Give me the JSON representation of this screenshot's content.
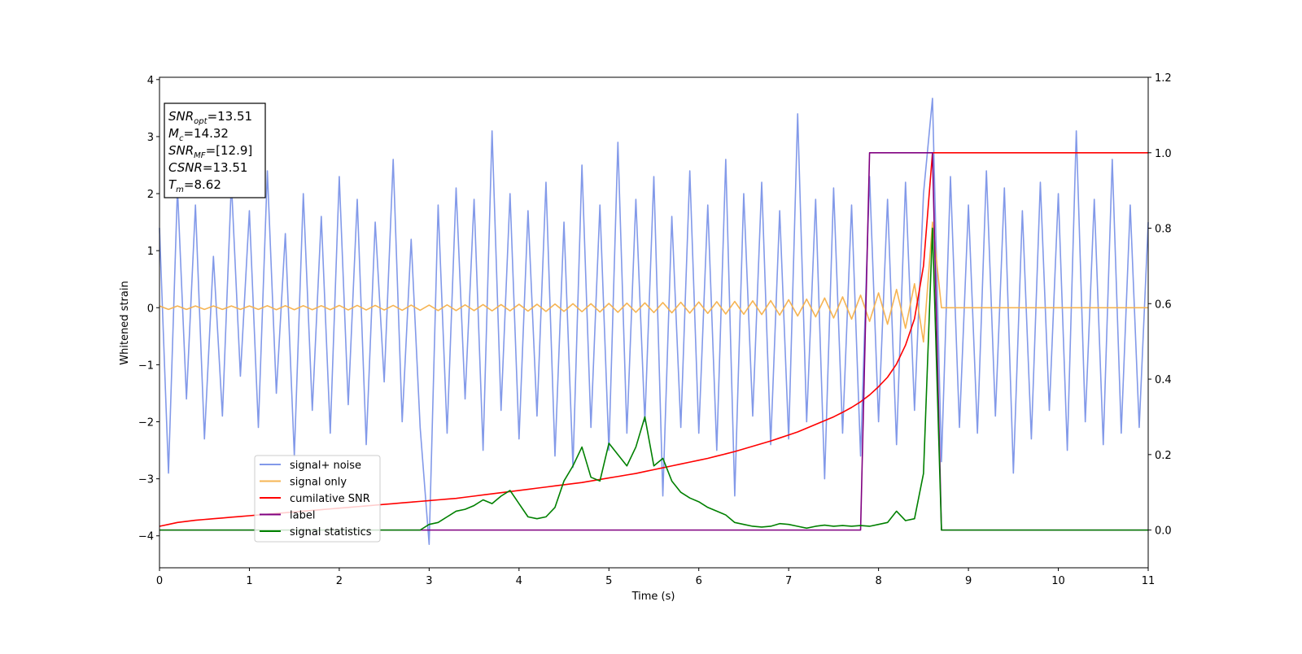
{
  "chart_data": {
    "type": "line",
    "xlabel": "Time (s)",
    "ylabel": "Whitened strain",
    "xlim": [
      0,
      11
    ],
    "xticks": [
      0,
      1,
      2,
      3,
      4,
      5,
      6,
      7,
      8,
      9,
      10,
      11
    ],
    "ylim": [
      -4.56,
      4.04
    ],
    "yticks": [
      {
        "value": -4,
        "label": "−4"
      },
      {
        "value": -3,
        "label": "−3"
      },
      {
        "value": -2,
        "label": "−2"
      },
      {
        "value": -1,
        "label": "−1"
      },
      0,
      1,
      2,
      3,
      4
    ],
    "y2lim": [
      -0.1,
      1.2
    ],
    "y2ticks": [
      {
        "value": 0,
        "label": "0.0"
      },
      0.2,
      0.4,
      0.6,
      0.8,
      {
        "value": 1,
        "label": "1.0"
      },
      1.2
    ],
    "legend_loc": "lower left",
    "annotations": [
      {
        "name": "SNR",
        "sub": "opt",
        "text": "=13.51"
      },
      {
        "name": "M",
        "sub": "c",
        "text": "=14.32"
      },
      {
        "name": "SNR",
        "sub": "MF",
        "text": "=[12.9]"
      },
      {
        "name": "CSNR",
        "text": "=13.51"
      },
      {
        "name": "T",
        "sub": "m",
        "text": "=8.62"
      }
    ],
    "x": [
      0,
      0.1,
      0.2,
      0.3,
      0.4,
      0.5,
      0.6,
      0.7,
      0.8,
      0.9,
      1,
      1.1,
      1.2,
      1.3,
      1.4,
      1.5,
      1.6,
      1.7,
      1.8,
      1.9,
      2,
      2.1,
      2.2,
      2.3,
      2.4,
      2.5,
      2.6,
      2.7,
      2.8,
      2.9,
      3,
      3.1,
      3.2,
      3.3,
      3.4,
      3.5,
      3.6,
      3.7,
      3.8,
      3.9,
      4,
      4.1,
      4.2,
      4.3,
      4.4,
      4.5,
      4.6,
      4.7,
      4.8,
      4.9,
      5,
      5.1,
      5.2,
      5.3,
      5.4,
      5.5,
      5.6,
      5.7,
      5.8,
      5.9,
      6,
      6.1,
      6.2,
      6.3,
      6.4,
      6.5,
      6.6,
      6.7,
      6.8,
      6.9,
      7,
      7.1,
      7.2,
      7.3,
      7.4,
      7.5,
      7.6,
      7.7,
      7.8,
      7.9,
      8,
      8.1,
      8.2,
      8.3,
      8.4,
      8.5,
      8.6,
      8.7,
      8.8,
      8.9,
      9,
      9.1,
      9.2,
      9.3,
      9.4,
      9.5,
      9.6,
      9.7,
      9.8,
      9.9,
      10,
      10.1,
      10.2,
      10.3,
      10.4,
      10.5,
      10.6,
      10.7,
      10.8,
      10.9,
      11
    ],
    "series": [
      {
        "name": "signal+ noise",
        "color": "#7b93e8",
        "values": [
          1.4,
          -2.9,
          2.1,
          -1.6,
          1.8,
          -2.3,
          0.9,
          -1.9,
          2.2,
          -1.2,
          1.7,
          -2.1,
          2.4,
          -1.5,
          1.3,
          -2.6,
          2.0,
          -1.8,
          1.6,
          -2.2,
          2.3,
          -1.7,
          1.9,
          -2.4,
          1.5,
          -1.3,
          2.6,
          -2.0,
          1.2,
          -2.1,
          -4.15,
          1.8,
          -2.2,
          2.1,
          -1.6,
          1.9,
          -2.5,
          3.1,
          -1.8,
          2.0,
          -2.3,
          1.7,
          -1.9,
          2.2,
          -2.6,
          1.5,
          -2.8,
          2.5,
          -2.1,
          1.8,
          -2.5,
          2.9,
          -2.2,
          1.9,
          -2.0,
          2.3,
          -3.3,
          1.6,
          -2.1,
          2.4,
          -2.2,
          1.8,
          -2.5,
          2.6,
          -3.3,
          2.0,
          -1.9,
          2.2,
          -2.4,
          1.7,
          -2.3,
          3.4,
          -2.0,
          1.9,
          -3.0,
          2.1,
          -2.2,
          1.8,
          -2.6,
          2.3,
          -2.0,
          1.9,
          -2.4,
          2.2,
          -1.8,
          2.0,
          3.67,
          -2.7,
          2.3,
          -2.1,
          1.8,
          -2.2,
          2.4,
          -1.9,
          2.1,
          -2.9,
          1.7,
          -2.3,
          2.2,
          -1.8,
          2.0,
          -2.5,
          3.1,
          -2.0,
          1.9,
          -2.4,
          2.6,
          -2.2,
          1.8,
          -2.1,
          1.5
        ]
      },
      {
        "name": "signal only",
        "color": "#f5b04a",
        "values": [
          0.03,
          -0.03,
          0.03,
          -0.03,
          0.03,
          -0.03,
          0.03,
          -0.03,
          0.03,
          -0.03,
          0.03,
          -0.03,
          0.035,
          -0.035,
          0.035,
          -0.035,
          0.035,
          -0.035,
          0.035,
          -0.035,
          0.04,
          -0.04,
          0.04,
          -0.04,
          0.04,
          -0.04,
          0.04,
          -0.045,
          0.045,
          -0.045,
          0.045,
          -0.05,
          0.05,
          -0.05,
          0.05,
          -0.05,
          0.055,
          -0.055,
          0.055,
          -0.055,
          0.06,
          -0.06,
          0.06,
          -0.065,
          0.065,
          -0.065,
          0.07,
          -0.07,
          0.07,
          -0.075,
          0.075,
          -0.08,
          0.08,
          -0.08,
          0.085,
          -0.085,
          0.09,
          -0.09,
          0.095,
          -0.095,
          0.1,
          -0.1,
          0.105,
          -0.11,
          0.11,
          -0.115,
          0.12,
          -0.12,
          0.125,
          -0.13,
          0.14,
          -0.145,
          0.15,
          -0.16,
          0.17,
          -0.18,
          0.19,
          -0.2,
          0.22,
          -0.24,
          0.26,
          -0.29,
          0.32,
          -0.36,
          0.42,
          -0.6,
          1.5,
          0,
          0,
          0,
          0,
          0,
          0,
          0,
          0,
          0,
          0,
          0,
          0,
          0,
          0,
          0,
          0,
          0,
          0,
          0,
          0,
          0,
          0,
          0,
          0
        ]
      },
      {
        "name": "cumilative SNR",
        "color": "#ff0000",
        "axis": "y2",
        "values": [
          0.01,
          0.015,
          0.02,
          0.023,
          0.026,
          0.028,
          0.03,
          0.032,
          0.034,
          0.036,
          0.038,
          0.04,
          0.042,
          0.044,
          0.046,
          0.048,
          0.05,
          0.052,
          0.054,
          0.056,
          0.058,
          0.06,
          0.062,
          0.064,
          0.066,
          0.068,
          0.07,
          0.072,
          0.074,
          0.076,
          0.078,
          0.08,
          0.082,
          0.084,
          0.087,
          0.09,
          0.093,
          0.096,
          0.099,
          0.102,
          0.105,
          0.108,
          0.111,
          0.114,
          0.117,
          0.12,
          0.123,
          0.126,
          0.13,
          0.134,
          0.138,
          0.142,
          0.146,
          0.15,
          0.155,
          0.16,
          0.165,
          0.17,
          0.175,
          0.18,
          0.185,
          0.19,
          0.196,
          0.202,
          0.208,
          0.215,
          0.222,
          0.229,
          0.236,
          0.244,
          0.252,
          0.26,
          0.27,
          0.28,
          0.29,
          0.3,
          0.312,
          0.325,
          0.34,
          0.358,
          0.38,
          0.405,
          0.44,
          0.49,
          0.56,
          0.7,
          1.0,
          1.0,
          1.0,
          1.0,
          1.0,
          1.0,
          1.0,
          1.0,
          1.0,
          1.0,
          1.0,
          1.0,
          1.0,
          1.0,
          1.0,
          1.0,
          1.0,
          1.0,
          1.0,
          1.0,
          1.0,
          1.0,
          1.0,
          1.0,
          1.0
        ]
      },
      {
        "name": "label",
        "color": "#800080",
        "axis": "y2",
        "values": [
          0,
          0,
          0,
          0,
          0,
          0,
          0,
          0,
          0,
          0,
          0,
          0,
          0,
          0,
          0,
          0,
          0,
          0,
          0,
          0,
          0,
          0,
          0,
          0,
          0,
          0,
          0,
          0,
          0,
          0,
          0,
          0,
          0,
          0,
          0,
          0,
          0,
          0,
          0,
          0,
          0,
          0,
          0,
          0,
          0,
          0,
          0,
          0,
          0,
          0,
          0,
          0,
          0,
          0,
          0,
          0,
          0,
          0,
          0,
          0,
          0,
          0,
          0,
          0,
          0,
          0,
          0,
          0,
          0,
          0,
          0,
          0,
          0,
          0,
          0,
          0,
          0,
          0,
          0,
          1,
          1,
          1,
          1,
          1,
          1,
          1,
          1,
          0,
          0,
          0,
          0,
          0,
          0,
          0,
          0,
          0,
          0,
          0,
          0,
          0,
          0,
          0,
          0,
          0,
          0,
          0,
          0,
          0,
          0,
          0,
          0
        ]
      },
      {
        "name": "signal statistics",
        "color": "#008000",
        "axis": "y2",
        "values": [
          0,
          0,
          0,
          0,
          0,
          0,
          0,
          0,
          0,
          0,
          0,
          0,
          0,
          0,
          0,
          0,
          0,
          0,
          0,
          0,
          0,
          0,
          0,
          0,
          0,
          0,
          0,
          0,
          0,
          0,
          0.015,
          0.02,
          0.035,
          0.05,
          0.055,
          0.065,
          0.08,
          0.07,
          0.09,
          0.105,
          0.07,
          0.035,
          0.03,
          0.035,
          0.06,
          0.13,
          0.17,
          0.22,
          0.14,
          0.13,
          0.23,
          0.2,
          0.17,
          0.22,
          0.3,
          0.17,
          0.19,
          0.13,
          0.1,
          0.085,
          0.075,
          0.06,
          0.05,
          0.04,
          0.02,
          0.015,
          0.01,
          0.008,
          0.01,
          0.017,
          0.015,
          0.01,
          0.005,
          0.01,
          0.013,
          0.01,
          0.012,
          0.01,
          0.012,
          0.01,
          0.015,
          0.02,
          0.05,
          0.025,
          0.03,
          0.15,
          0.8,
          0,
          0,
          0,
          0,
          0,
          0,
          0,
          0,
          0,
          0,
          0,
          0,
          0,
          0,
          0,
          0,
          0,
          0,
          0,
          0,
          0,
          0,
          0,
          0
        ]
      }
    ]
  }
}
